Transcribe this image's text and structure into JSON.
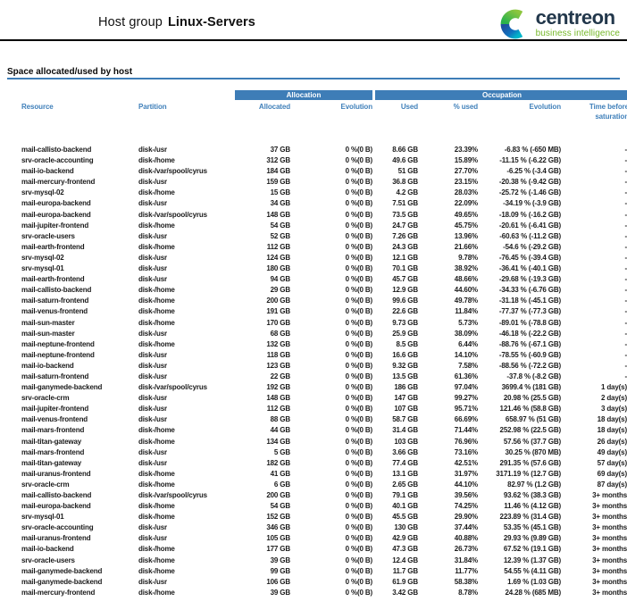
{
  "header": {
    "title_prefix": "Host group",
    "title_name": "Linux-Servers",
    "logo": {
      "brand": "centreon",
      "tagline": "business intelligence"
    }
  },
  "section": {
    "heading": "Space allocated/used by host"
  },
  "table": {
    "group_headers": [
      {
        "label": "Allocation"
      },
      {
        "label": "Occupation"
      }
    ],
    "columns": [
      "Resource",
      "Partition",
      "Allocated",
      "Evolution",
      "Used",
      "% used",
      "Evolution",
      "Time before saturation"
    ],
    "column_keys": [
      "resource",
      "partition",
      "allocated",
      "allocation-evolution",
      "used",
      "percent-used",
      "occupation-evolution",
      "time-before-saturation"
    ],
    "rows": [
      [
        "mail-callisto-backend",
        "disk-/usr",
        "37 GB",
        "0 %(0 B)",
        "8.66 GB",
        "23.39%",
        "-6.83 % (-650 MB)",
        "-"
      ],
      [
        "srv-oracle-accounting",
        "disk-/home",
        "312 GB",
        "0 %(0 B)",
        "49.6 GB",
        "15.89%",
        "-11.15 % (-6.22 GB)",
        "-"
      ],
      [
        "mail-io-backend",
        "disk-/var/spool/cyrus",
        "184 GB",
        "0 %(0 B)",
        "51 GB",
        "27.70%",
        "-6.25 % (-3.4 GB)",
        "-"
      ],
      [
        "mail-mercury-frontend",
        "disk-/usr",
        "159 GB",
        "0 %(0 B)",
        "36.8 GB",
        "23.15%",
        "-20.38 % (-9.42 GB)",
        "-"
      ],
      [
        "srv-mysql-02",
        "disk-/home",
        "15 GB",
        "0 %(0 B)",
        "4.2 GB",
        "28.03%",
        "-25.72 % (-1.46 GB)",
        "-"
      ],
      [
        "mail-europa-backend",
        "disk-/usr",
        "34 GB",
        "0 %(0 B)",
        "7.51 GB",
        "22.09%",
        "-34.19 % (-3.9 GB)",
        "-"
      ],
      [
        "mail-europa-backend",
        "disk-/var/spool/cyrus",
        "148 GB",
        "0 %(0 B)",
        "73.5 GB",
        "49.65%",
        "-18.09 % (-16.2 GB)",
        "-"
      ],
      [
        "mail-jupiter-frontend",
        "disk-/home",
        "54 GB",
        "0 %(0 B)",
        "24.7 GB",
        "45.75%",
        "-20.61 % (-6.41 GB)",
        "-"
      ],
      [
        "srv-oracle-users",
        "disk-/usr",
        "52 GB",
        "0 %(0 B)",
        "7.26 GB",
        "13.96%",
        "-60.63 % (-11.2 GB)",
        "-"
      ],
      [
        "mail-earth-frontend",
        "disk-/home",
        "112 GB",
        "0 %(0 B)",
        "24.3 GB",
        "21.66%",
        "-54.6 % (-29.2 GB)",
        "-"
      ],
      [
        "srv-mysql-02",
        "disk-/usr",
        "124 GB",
        "0 %(0 B)",
        "12.1 GB",
        "9.78%",
        "-76.45 % (-39.4 GB)",
        "-"
      ],
      [
        "srv-mysql-01",
        "disk-/usr",
        "180 GB",
        "0 %(0 B)",
        "70.1 GB",
        "38.92%",
        "-36.41 % (-40.1 GB)",
        "-"
      ],
      [
        "mail-earth-frontend",
        "disk-/usr",
        "94 GB",
        "0 %(0 B)",
        "45.7 GB",
        "48.66%",
        "-29.68 % (-19.3 GB)",
        "-"
      ],
      [
        "mail-callisto-backend",
        "disk-/home",
        "29 GB",
        "0 %(0 B)",
        "12.9 GB",
        "44.60%",
        "-34.33 % (-6.76 GB)",
        "-"
      ],
      [
        "mail-saturn-frontend",
        "disk-/home",
        "200 GB",
        "0 %(0 B)",
        "99.6 GB",
        "49.78%",
        "-31.18 % (-45.1 GB)",
        "-"
      ],
      [
        "mail-venus-frontend",
        "disk-/home",
        "191 GB",
        "0 %(0 B)",
        "22.6 GB",
        "11.84%",
        "-77.37 % (-77.3 GB)",
        "-"
      ],
      [
        "mail-sun-master",
        "disk-/home",
        "170 GB",
        "0 %(0 B)",
        "9.73 GB",
        "5.73%",
        "-89.01 % (-78.8 GB)",
        "-"
      ],
      [
        "mail-sun-master",
        "disk-/usr",
        "68 GB",
        "0 %(0 B)",
        "25.9 GB",
        "38.09%",
        "-46.18 % (-22.2 GB)",
        "-"
      ],
      [
        "mail-neptune-frontend",
        "disk-/home",
        "132 GB",
        "0 %(0 B)",
        "8.5 GB",
        "6.44%",
        "-88.76 % (-67.1 GB)",
        "-"
      ],
      [
        "mail-neptune-frontend",
        "disk-/usr",
        "118 GB",
        "0 %(0 B)",
        "16.6 GB",
        "14.10%",
        "-78.55 % (-60.9 GB)",
        "-"
      ],
      [
        "mail-io-backend",
        "disk-/usr",
        "123 GB",
        "0 %(0 B)",
        "9.32 GB",
        "7.58%",
        "-88.56 % (-72.2 GB)",
        "-"
      ],
      [
        "mail-saturn-frontend",
        "disk-/usr",
        "22 GB",
        "0 %(0 B)",
        "13.5 GB",
        "61.36%",
        "-37.8 % (-8.2 GB)",
        "-"
      ],
      [
        "mail-ganymede-backend",
        "disk-/var/spool/cyrus",
        "192 GB",
        "0 %(0 B)",
        "186 GB",
        "97.04%",
        "3699.4 % (181 GB)",
        "1 day(s)"
      ],
      [
        "srv-oracle-crm",
        "disk-/usr",
        "148 GB",
        "0 %(0 B)",
        "147 GB",
        "99.27%",
        "20.98 % (25.5 GB)",
        "2 day(s)"
      ],
      [
        "mail-jupiter-frontend",
        "disk-/usr",
        "112 GB",
        "0 %(0 B)",
        "107 GB",
        "95.71%",
        "121.46 % (58.8 GB)",
        "3 day(s)"
      ],
      [
        "mail-venus-frontend",
        "disk-/usr",
        "88 GB",
        "0 %(0 B)",
        "58.7 GB",
        "66.69%",
        "658.97 % (51 GB)",
        "18 day(s)"
      ],
      [
        "mail-mars-frontend",
        "disk-/home",
        "44 GB",
        "0 %(0 B)",
        "31.4 GB",
        "71.44%",
        "252.98 % (22.5 GB)",
        "18 day(s)"
      ],
      [
        "mail-titan-gateway",
        "disk-/home",
        "134 GB",
        "0 %(0 B)",
        "103 GB",
        "76.96%",
        "57.56 % (37.7 GB)",
        "26 day(s)"
      ],
      [
        "mail-mars-frontend",
        "disk-/usr",
        "5 GB",
        "0 %(0 B)",
        "3.66 GB",
        "73.16%",
        "30.25 % (870 MB)",
        "49 day(s)"
      ],
      [
        "mail-titan-gateway",
        "disk-/usr",
        "182 GB",
        "0 %(0 B)",
        "77.4 GB",
        "42.51%",
        "291.35 % (57.6 GB)",
        "57 day(s)"
      ],
      [
        "mail-uranus-frontend",
        "disk-/home",
        "41 GB",
        "0 %(0 B)",
        "13.1 GB",
        "31.97%",
        "3171.19 % (12.7 GB)",
        "69 day(s)"
      ],
      [
        "srv-oracle-crm",
        "disk-/home",
        "6 GB",
        "0 %(0 B)",
        "2.65 GB",
        "44.10%",
        "82.97 % (1.2 GB)",
        "87 day(s)"
      ],
      [
        "mail-callisto-backend",
        "disk-/var/spool/cyrus",
        "200 GB",
        "0 %(0 B)",
        "79.1 GB",
        "39.56%",
        "93.62 % (38.3 GB)",
        "3+ months"
      ],
      [
        "mail-europa-backend",
        "disk-/home",
        "54 GB",
        "0 %(0 B)",
        "40.1 GB",
        "74.25%",
        "11.46 % (4.12 GB)",
        "3+ months"
      ],
      [
        "srv-mysql-01",
        "disk-/home",
        "152 GB",
        "0 %(0 B)",
        "45.5 GB",
        "29.90%",
        "223.89 % (31.4 GB)",
        "3+ months"
      ],
      [
        "srv-oracle-accounting",
        "disk-/usr",
        "346 GB",
        "0 %(0 B)",
        "130 GB",
        "37.44%",
        "53.35 % (45.1 GB)",
        "3+ months"
      ],
      [
        "mail-uranus-frontend",
        "disk-/usr",
        "105 GB",
        "0 %(0 B)",
        "42.9 GB",
        "40.88%",
        "29.93 % (9.89 GB)",
        "3+ months"
      ],
      [
        "mail-io-backend",
        "disk-/home",
        "177 GB",
        "0 %(0 B)",
        "47.3 GB",
        "26.73%",
        "67.52 % (19.1 GB)",
        "3+ months"
      ],
      [
        "srv-oracle-users",
        "disk-/home",
        "39 GB",
        "0 %(0 B)",
        "12.4 GB",
        "31.84%",
        "12.39 % (1.37 GB)",
        "3+ months"
      ],
      [
        "mail-ganymede-backend",
        "disk-/home",
        "99 GB",
        "0 %(0 B)",
        "11.7 GB",
        "11.77%",
        "54.55 % (4.11 GB)",
        "3+ months"
      ],
      [
        "mail-ganymede-backend",
        "disk-/usr",
        "106 GB",
        "0 %(0 B)",
        "61.9 GB",
        "58.38%",
        "1.69 % (1.03 GB)",
        "3+ months"
      ],
      [
        "mail-mercury-frontend",
        "disk-/home",
        "39 GB",
        "0 %(0 B)",
        "3.42 GB",
        "8.78%",
        "24.28 % (685 MB)",
        "3+ months"
      ]
    ]
  },
  "colors": {
    "band_blue": "#3e7db7",
    "header_text_blue": "#4080ba",
    "brand_navy": "#22374b",
    "brand_green": "#76b82a",
    "rule_black": "#000000",
    "data_text": "#1b1b1b"
  }
}
